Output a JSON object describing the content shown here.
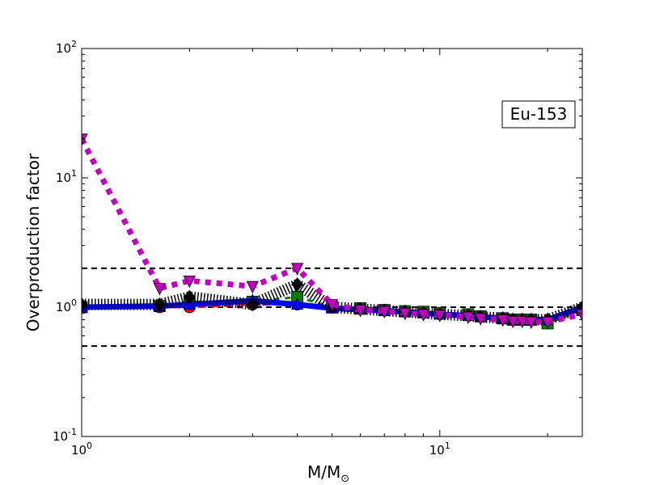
{
  "chart_data": {
    "type": "line",
    "xscale": "log",
    "yscale": "log",
    "xlim": [
      1,
      25
    ],
    "ylim": [
      0.1,
      100
    ],
    "xlabel_main": "M/M",
    "xlabel_sub": "⊙",
    "ylabel": "Overproduction factor",
    "x_ticks": [
      {
        "value": 1,
        "base": "10",
        "exp": "0"
      },
      {
        "value": 10,
        "base": "10",
        "exp": "1"
      }
    ],
    "y_ticks": [
      {
        "value": 0.1,
        "base": "10",
        "exp": "-1"
      },
      {
        "value": 1,
        "base": "10",
        "exp": "0"
      },
      {
        "value": 10,
        "base": "10",
        "exp": "1"
      },
      {
        "value": 100,
        "base": "10",
        "exp": "2"
      }
    ],
    "annotation": "Eu-153",
    "grid": false,
    "reference_lines": [
      {
        "y": 2.0,
        "color": "#000000"
      },
      {
        "y": 1.0,
        "color": "#000000"
      },
      {
        "y": 0.5,
        "color": "#000000"
      }
    ],
    "series": [
      {
        "color": "#ff0000",
        "style": "dashed",
        "marker": "circle",
        "lineWidth": 3,
        "x": [
          1,
          1.65,
          2,
          3,
          4,
          5,
          6,
          7,
          8,
          9,
          10,
          12,
          13,
          15,
          16,
          17,
          18,
          20,
          25
        ],
        "y": [
          1.0,
          1.0,
          1.0,
          1.05,
          1.05,
          1.0,
          0.98,
          0.95,
          0.93,
          0.92,
          0.9,
          0.88,
          0.85,
          0.82,
          0.8,
          0.8,
          0.8,
          0.78,
          0.95
        ]
      },
      {
        "color": "#008000",
        "style": "dotted",
        "marker": "square",
        "lineWidth": 3,
        "x": [
          1,
          1.65,
          2,
          3,
          4,
          5,
          6,
          7,
          8,
          9,
          10,
          12,
          13,
          15,
          16,
          17,
          18,
          20,
          25
        ],
        "y": [
          1.0,
          1.02,
          1.1,
          1.1,
          1.2,
          1.0,
          0.98,
          0.95,
          0.93,
          0.92,
          0.9,
          0.88,
          0.85,
          0.82,
          0.8,
          0.8,
          0.8,
          0.75,
          0.95
        ]
      },
      {
        "color": "#0000ff",
        "style": "solid",
        "marker": "triangle-up",
        "lineWidth": 7,
        "x": [
          1,
          1.65,
          2,
          3,
          4,
          5,
          6,
          7,
          8,
          9,
          10,
          12,
          13,
          15,
          16,
          17,
          18,
          20,
          25
        ],
        "y": [
          1.0,
          1.02,
          1.05,
          1.12,
          1.05,
          0.98,
          0.96,
          0.94,
          0.92,
          0.9,
          0.88,
          0.86,
          0.84,
          0.82,
          0.8,
          0.8,
          0.8,
          0.8,
          1.0
        ]
      },
      {
        "color": "#000000",
        "style": "hatched",
        "marker": "diamond",
        "lineWidth": 3,
        "x": [
          1,
          1.65,
          2,
          3,
          4,
          5,
          6,
          7,
          8,
          9,
          10,
          12,
          13,
          15,
          16,
          17,
          18,
          20,
          25
        ],
        "y": [
          1.05,
          1.05,
          1.2,
          1.05,
          1.5,
          1.0,
          0.97,
          0.94,
          0.92,
          0.9,
          0.88,
          0.86,
          0.84,
          0.82,
          0.8,
          0.8,
          0.8,
          0.8,
          1.0
        ]
      },
      {
        "color": "#bf00bf",
        "style": "dotted",
        "marker": "triangle-down",
        "lineWidth": 7,
        "x": [
          1,
          1.65,
          2,
          3,
          4,
          5,
          6,
          7,
          8,
          9,
          10,
          12,
          13,
          15,
          16,
          17,
          18,
          20,
          25
        ],
        "y": [
          20,
          1.4,
          1.6,
          1.45,
          2.0,
          1.05,
          0.95,
          0.93,
          0.9,
          0.88,
          0.87,
          0.84,
          0.82,
          0.8,
          0.78,
          0.78,
          0.77,
          0.77,
          0.88
        ]
      }
    ]
  }
}
